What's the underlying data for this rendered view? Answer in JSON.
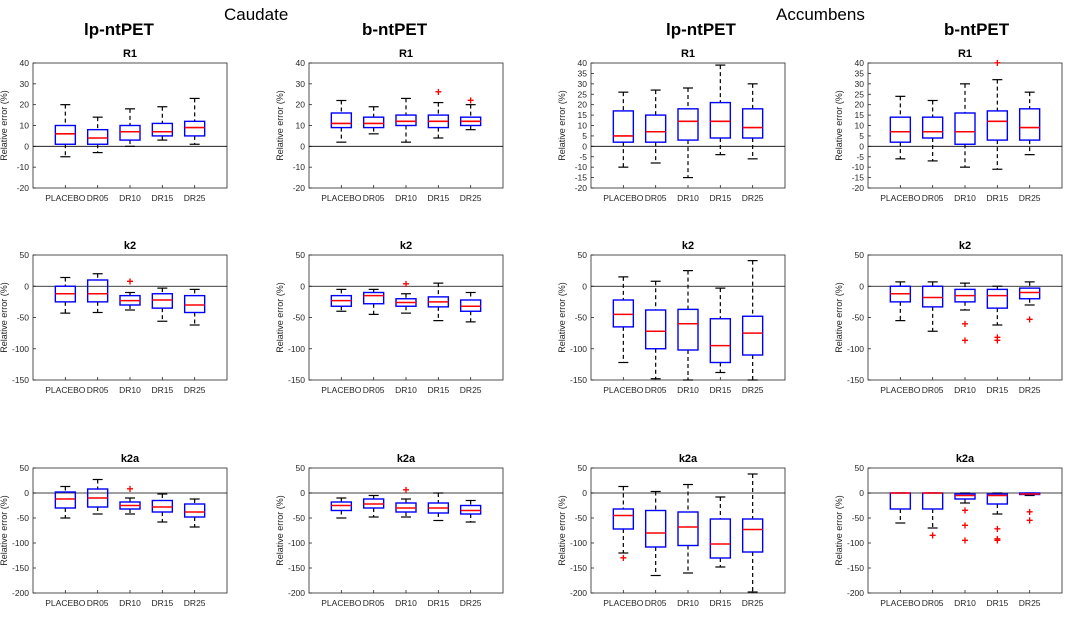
{
  "figure": {
    "region_titles": [
      "Caudate",
      "Accumbens"
    ],
    "column_titles": [
      "lp-ntPET",
      "b-ntPET",
      "lp-ntPET",
      "b-ntPET"
    ],
    "colors": {
      "box": "#0000ff",
      "median": "#ff0000",
      "whisker": "#000000",
      "outlier": "#ff0000",
      "zero_line": "#000000"
    }
  },
  "chart_data": [
    {
      "type": "boxplot",
      "region": "Caudate",
      "method": "lp-ntPET",
      "title": "R1",
      "ylabel": "Relative error (%)",
      "ylim": [
        -20,
        40
      ],
      "yticks": [
        -20,
        -10,
        0,
        10,
        20,
        30,
        40
      ],
      "categories": [
        "PLACEBO",
        "DR05",
        "DR10",
        "DR15",
        "DR25"
      ],
      "boxes": [
        {
          "low": -5,
          "q1": 1,
          "median": 6,
          "q3": 10,
          "high": 20,
          "outliers": []
        },
        {
          "low": -3,
          "q1": 1,
          "median": 4,
          "q3": 8,
          "high": 14,
          "outliers": []
        },
        {
          "low": 0,
          "q1": 3,
          "median": 7,
          "q3": 10,
          "high": 18,
          "outliers": []
        },
        {
          "low": 3,
          "q1": 5,
          "median": 7,
          "q3": 11,
          "high": 19,
          "outliers": []
        },
        {
          "low": 1,
          "q1": 5,
          "median": 9,
          "q3": 12,
          "high": 23,
          "outliers": []
        }
      ]
    },
    {
      "type": "boxplot",
      "region": "Caudate",
      "method": "b-ntPET",
      "title": "R1",
      "ylabel": "Relative error (%)",
      "ylim": [
        -20,
        40
      ],
      "yticks": [
        -20,
        -10,
        0,
        10,
        20,
        30,
        40
      ],
      "categories": [
        "PLACEBO",
        "DR05",
        "DR10",
        "DR15",
        "DR25"
      ],
      "boxes": [
        {
          "low": 2,
          "q1": 9,
          "median": 11,
          "q3": 16,
          "high": 22,
          "outliers": []
        },
        {
          "low": 6,
          "q1": 9,
          "median": 11,
          "q3": 14,
          "high": 19,
          "outliers": []
        },
        {
          "low": 2,
          "q1": 10,
          "median": 12,
          "q3": 15,
          "high": 23,
          "outliers": []
        },
        {
          "low": 4,
          "q1": 9,
          "median": 12,
          "q3": 15,
          "high": 21,
          "outliers": [
            26
          ]
        },
        {
          "low": 8,
          "q1": 10,
          "median": 12,
          "q3": 14,
          "high": 20,
          "outliers": [
            22
          ]
        }
      ]
    },
    {
      "type": "boxplot",
      "region": "Accumbens",
      "method": "lp-ntPET",
      "title": "R1",
      "ylabel": "Relative error (%)",
      "ylim": [
        -20,
        40
      ],
      "yticks": [
        -20,
        -15,
        -10,
        -5,
        0,
        5,
        10,
        15,
        20,
        25,
        30,
        35,
        40
      ],
      "categories": [
        "PLACEBO",
        "DR05",
        "DR10",
        "DR15",
        "DR25"
      ],
      "boxes": [
        {
          "low": -10,
          "q1": 2,
          "median": 5,
          "q3": 17,
          "high": 26,
          "outliers": []
        },
        {
          "low": -8,
          "q1": 2,
          "median": 7,
          "q3": 15,
          "high": 27,
          "outliers": []
        },
        {
          "low": -15,
          "q1": 3,
          "median": 12,
          "q3": 18,
          "high": 28,
          "outliers": []
        },
        {
          "low": -4,
          "q1": 4,
          "median": 12,
          "q3": 21,
          "high": 39,
          "outliers": []
        },
        {
          "low": -6,
          "q1": 4,
          "median": 9,
          "q3": 18,
          "high": 30,
          "outliers": []
        }
      ]
    },
    {
      "type": "boxplot",
      "region": "Accumbens",
      "method": "b-ntPET",
      "title": "R1",
      "ylabel": "Relative error (%)",
      "ylim": [
        -20,
        40
      ],
      "yticks": [
        -20,
        -15,
        -10,
        -5,
        0,
        5,
        10,
        15,
        20,
        25,
        30,
        35,
        40
      ],
      "categories": [
        "PLACEBO",
        "DR05",
        "DR10",
        "DR15",
        "DR25"
      ],
      "boxes": [
        {
          "low": -6,
          "q1": 2,
          "median": 7,
          "q3": 14,
          "high": 24,
          "outliers": []
        },
        {
          "low": -7,
          "q1": 4,
          "median": 7,
          "q3": 14,
          "high": 22,
          "outliers": []
        },
        {
          "low": -10,
          "q1": 1,
          "median": 7,
          "q3": 16,
          "high": 30,
          "outliers": []
        },
        {
          "low": -11,
          "q1": 3,
          "median": 12,
          "q3": 17,
          "high": 32,
          "outliers": [
            40
          ]
        },
        {
          "low": -4,
          "q1": 3,
          "median": 9,
          "q3": 18,
          "high": 26,
          "outliers": []
        }
      ]
    },
    {
      "type": "boxplot",
      "region": "Caudate",
      "method": "lp-ntPET",
      "title": "k2",
      "ylabel": "Relative error (%)",
      "ylim": [
        -150,
        50
      ],
      "yticks": [
        -150,
        -100,
        -50,
        0,
        50
      ],
      "categories": [
        "PLACEBO",
        "DR05",
        "DR10",
        "DR15",
        "DR25"
      ],
      "boxes": [
        {
          "low": -43,
          "q1": -25,
          "median": -12,
          "q3": 0,
          "high": 14,
          "outliers": []
        },
        {
          "low": -42,
          "q1": -25,
          "median": -12,
          "q3": 10,
          "high": 20,
          "outliers": []
        },
        {
          "low": -38,
          "q1": -30,
          "median": -23,
          "q3": -15,
          "high": -10,
          "outliers": [
            8
          ]
        },
        {
          "low": -56,
          "q1": -35,
          "median": -22,
          "q3": -12,
          "high": -3,
          "outliers": []
        },
        {
          "low": -62,
          "q1": -42,
          "median": -30,
          "q3": -15,
          "high": -5,
          "outliers": []
        }
      ]
    },
    {
      "type": "boxplot",
      "region": "Caudate",
      "method": "b-ntPET",
      "title": "k2",
      "ylabel": "Relative error (%)",
      "ylim": [
        -150,
        50
      ],
      "yticks": [
        -150,
        -100,
        -50,
        0,
        50
      ],
      "categories": [
        "PLACEBO",
        "DR05",
        "DR10",
        "DR15",
        "DR25"
      ],
      "boxes": [
        {
          "low": -40,
          "q1": -32,
          "median": -23,
          "q3": -15,
          "high": -5,
          "outliers": []
        },
        {
          "low": -45,
          "q1": -28,
          "median": -15,
          "q3": -10,
          "high": -5,
          "outliers": []
        },
        {
          "low": -43,
          "q1": -32,
          "median": -26,
          "q3": -20,
          "high": -12,
          "outliers": [
            4
          ]
        },
        {
          "low": -55,
          "q1": -33,
          "median": -25,
          "q3": -17,
          "high": 5,
          "outliers": []
        },
        {
          "low": -57,
          "q1": -40,
          "median": -32,
          "q3": -22,
          "high": -10,
          "outliers": []
        }
      ]
    },
    {
      "type": "boxplot",
      "region": "Accumbens",
      "method": "lp-ntPET",
      "title": "k2",
      "ylabel": "Relative error (%)",
      "ylim": [
        -150,
        50
      ],
      "yticks": [
        -150,
        -100,
        -50,
        0,
        50
      ],
      "categories": [
        "PLACEBO",
        "DR05",
        "DR10",
        "DR15",
        "DR25"
      ],
      "boxes": [
        {
          "low": -122,
          "q1": -65,
          "median": -45,
          "q3": -22,
          "high": 15,
          "outliers": []
        },
        {
          "low": -148,
          "q1": -100,
          "median": -72,
          "q3": -38,
          "high": 8,
          "outliers": []
        },
        {
          "low": -150,
          "q1": -102,
          "median": -60,
          "q3": -37,
          "high": 25,
          "outliers": []
        },
        {
          "low": -138,
          "q1": -122,
          "median": -95,
          "q3": -52,
          "high": -3,
          "outliers": []
        },
        {
          "low": -150,
          "q1": -110,
          "median": -75,
          "q3": -48,
          "high": 41,
          "outliers": []
        }
      ]
    },
    {
      "type": "boxplot",
      "region": "Accumbens",
      "method": "b-ntPET",
      "title": "k2",
      "ylabel": "Relative error (%)",
      "ylim": [
        -150,
        50
      ],
      "yticks": [
        -150,
        -100,
        -50,
        0,
        50
      ],
      "categories": [
        "PLACEBO",
        "DR05",
        "DR10",
        "DR15",
        "DR25"
      ],
      "boxes": [
        {
          "low": -55,
          "q1": -25,
          "median": -12,
          "q3": 0,
          "high": 7,
          "outliers": []
        },
        {
          "low": -72,
          "q1": -33,
          "median": -18,
          "q3": 0,
          "high": 7,
          "outliers": []
        },
        {
          "low": -38,
          "q1": -25,
          "median": -15,
          "q3": -5,
          "high": 5,
          "outliers": [
            -60,
            -87
          ]
        },
        {
          "low": -62,
          "q1": -35,
          "median": -15,
          "q3": -5,
          "high": 0,
          "outliers": [
            -82,
            -87
          ]
        },
        {
          "low": -30,
          "q1": -20,
          "median": -10,
          "q3": -3,
          "high": 7,
          "outliers": [
            -53
          ]
        }
      ]
    },
    {
      "type": "boxplot",
      "region": "Caudate",
      "method": "lp-ntPET",
      "title": "k2a",
      "ylabel": "Relative error (%)",
      "ylim": [
        -200,
        50
      ],
      "yticks": [
        -200,
        -150,
        -100,
        -50,
        0,
        50
      ],
      "categories": [
        "PLACEBO",
        "DR05",
        "DR10",
        "DR15",
        "DR25"
      ],
      "boxes": [
        {
          "low": -50,
          "q1": -30,
          "median": -12,
          "q3": 2,
          "high": 13,
          "outliers": []
        },
        {
          "low": -42,
          "q1": -28,
          "median": -10,
          "q3": 8,
          "high": 27,
          "outliers": []
        },
        {
          "low": -42,
          "q1": -32,
          "median": -25,
          "q3": -18,
          "high": -10,
          "outliers": [
            8
          ]
        },
        {
          "low": -58,
          "q1": -38,
          "median": -28,
          "q3": -15,
          "high": -2,
          "outliers": []
        },
        {
          "low": -68,
          "q1": -48,
          "median": -38,
          "q3": -22,
          "high": -12,
          "outliers": []
        }
      ]
    },
    {
      "type": "boxplot",
      "region": "Caudate",
      "method": "b-ntPET",
      "title": "k2a",
      "ylabel": "Relative error (%)",
      "ylim": [
        -200,
        50
      ],
      "yticks": [
        -200,
        -150,
        -100,
        -50,
        0,
        50
      ],
      "categories": [
        "PLACEBO",
        "DR05",
        "DR10",
        "DR15",
        "DR25"
      ],
      "boxes": [
        {
          "low": -50,
          "q1": -35,
          "median": -25,
          "q3": -18,
          "high": -10,
          "outliers": []
        },
        {
          "low": -48,
          "q1": -30,
          "median": -22,
          "q3": -12,
          "high": -5,
          "outliers": []
        },
        {
          "low": -48,
          "q1": -38,
          "median": -30,
          "q3": -20,
          "high": -12,
          "outliers": [
            6
          ]
        },
        {
          "low": -55,
          "q1": -40,
          "median": -30,
          "q3": -20,
          "high": 0,
          "outliers": []
        },
        {
          "low": -58,
          "q1": -42,
          "median": -35,
          "q3": -25,
          "high": -15,
          "outliers": []
        }
      ]
    },
    {
      "type": "boxplot",
      "region": "Accumbens",
      "method": "lp-ntPET",
      "title": "k2a",
      "ylabel": "Relative error (%)",
      "ylim": [
        -200,
        50
      ],
      "yticks": [
        -200,
        -150,
        -100,
        -50,
        0,
        50
      ],
      "categories": [
        "PLACEBO",
        "DR05",
        "DR10",
        "DR15",
        "DR25"
      ],
      "boxes": [
        {
          "low": -120,
          "q1": -72,
          "median": -45,
          "q3": -32,
          "high": 13,
          "outliers": [
            -130
          ]
        },
        {
          "low": -165,
          "q1": -108,
          "median": -80,
          "q3": -35,
          "high": 3,
          "outliers": []
        },
        {
          "low": -160,
          "q1": -105,
          "median": -68,
          "q3": -38,
          "high": 17,
          "outliers": []
        },
        {
          "low": -148,
          "q1": -130,
          "median": -102,
          "q3": -52,
          "high": -8,
          "outliers": []
        },
        {
          "low": -198,
          "q1": -118,
          "median": -73,
          "q3": -52,
          "high": 38,
          "outliers": []
        }
      ]
    },
    {
      "type": "boxplot",
      "region": "Accumbens",
      "method": "b-ntPET",
      "title": "k2a",
      "ylabel": "Relative error (%)",
      "ylim": [
        -200,
        50
      ],
      "yticks": [
        -200,
        -150,
        -100,
        -50,
        0,
        50
      ],
      "categories": [
        "PLACEBO",
        "DR05",
        "DR10",
        "DR15",
        "DR25"
      ],
      "boxes": [
        {
          "low": -60,
          "q1": -32,
          "median": 0,
          "q3": 0,
          "high": 0,
          "outliers": []
        },
        {
          "low": -70,
          "q1": -32,
          "median": 0,
          "q3": 0,
          "high": 0,
          "outliers": [
            -85
          ]
        },
        {
          "low": -20,
          "q1": -12,
          "median": -5,
          "q3": -2,
          "high": 0,
          "outliers": [
            -35,
            -65,
            -95
          ]
        },
        {
          "low": -42,
          "q1": -22,
          "median": -5,
          "q3": -2,
          "high": 0,
          "outliers": [
            -72,
            -92,
            -95
          ]
        },
        {
          "low": -5,
          "q1": -3,
          "median": -2,
          "q3": 0,
          "high": 0,
          "outliers": [
            -38,
            -55
          ]
        }
      ]
    }
  ]
}
